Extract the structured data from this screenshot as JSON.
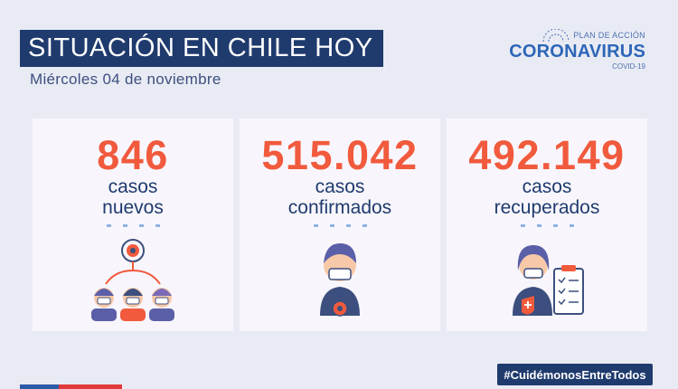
{
  "header": {
    "title": "SITUACIÓN EN CHILE HOY",
    "date": "Miércoles 04 de noviembre"
  },
  "logo": {
    "top": "PLAN DE ACCIÓN",
    "main": "CORONAVIRUS",
    "sub": "COVID-19"
  },
  "cards": [
    {
      "number": "846",
      "line1": "casos",
      "line2": "nuevos",
      "icon": "group-virus-icon"
    },
    {
      "number": "515.042",
      "line1": "casos",
      "line2": "confirmados",
      "icon": "masked-person-icon"
    },
    {
      "number": "492.149",
      "line1": "casos",
      "line2": "recuperados",
      "icon": "recovered-person-clipboard-icon"
    }
  ],
  "footer": {
    "hashtag": "#CuidémonosEntreTodos"
  },
  "colors": {
    "navy": "#1f3b6e",
    "accent": "#f15a3d",
    "background": "#e9ebf4"
  }
}
